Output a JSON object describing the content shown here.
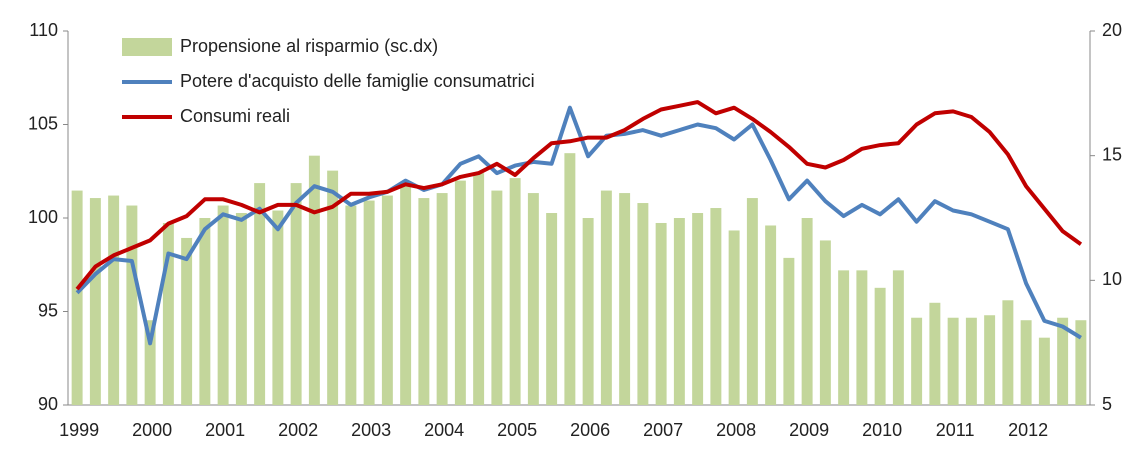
{
  "chart_data": {
    "type": "bar_line",
    "categories": [
      "1999",
      null,
      null,
      null,
      "2000",
      null,
      null,
      null,
      "2001",
      null,
      null,
      null,
      "2002",
      null,
      null,
      null,
      "2003",
      null,
      null,
      null,
      "2004",
      null,
      null,
      null,
      "2005",
      null,
      null,
      null,
      "2006",
      null,
      null,
      null,
      "2007",
      null,
      null,
      null,
      "2008",
      null,
      null,
      null,
      "2009",
      null,
      null,
      null,
      "2010",
      null,
      null,
      null,
      "2011",
      null,
      null,
      null,
      "2012",
      null,
      null,
      null
    ],
    "series": [
      {
        "name": "Propensione al risparmio (sc.dx)",
        "type": "bar",
        "axis": "y2",
        "color": "#c3d69b",
        "values": [
          13.6,
          13.3,
          13.4,
          13.0,
          8.4,
          12.3,
          11.7,
          12.5,
          13.0,
          12.7,
          13.9,
          12.8,
          13.9,
          15.0,
          14.4,
          13.0,
          13.2,
          13.4,
          13.8,
          13.3,
          13.5,
          14.0,
          14.3,
          13.6,
          14.1,
          13.5,
          12.7,
          15.1,
          12.5,
          13.6,
          13.5,
          13.1,
          12.3,
          12.5,
          12.7,
          12.9,
          12.0,
          13.3,
          12.2,
          10.9,
          12.5,
          11.6,
          10.4,
          10.4,
          9.7,
          10.4,
          8.5,
          9.1,
          8.5,
          8.5,
          8.6,
          9.2,
          8.4,
          7.7,
          8.5,
          8.4
        ]
      },
      {
        "name": "Potere d'acquisto delle famiglie consumatrici",
        "type": "line",
        "color": "#4f81bd",
        "values": [
          96.0,
          97.0,
          97.8,
          97.7,
          93.3,
          98.1,
          97.8,
          99.4,
          100.2,
          99.9,
          100.5,
          99.4,
          100.8,
          101.7,
          101.4,
          100.7,
          101.1,
          101.4,
          102.0,
          101.5,
          101.8,
          102.9,
          103.3,
          102.4,
          102.8,
          103.0,
          102.9,
          105.9,
          103.3,
          104.4,
          104.5,
          104.7,
          104.4,
          104.7,
          105.0,
          104.8,
          104.2,
          105.0,
          103.1,
          101.0,
          102.0,
          100.9,
          100.1,
          100.7,
          100.2,
          101.0,
          99.8,
          100.9,
          100.4,
          100.2,
          99.8,
          99.4,
          96.5,
          94.5,
          94.2,
          93.6
        ]
      },
      {
        "name": "Consumi reali",
        "type": "line",
        "color": "#c00000",
        "values": [
          96.2,
          97.4,
          98.0,
          98.4,
          98.8,
          99.7,
          100.1,
          101.0,
          101.0,
          100.7,
          100.3,
          100.7,
          100.7,
          100.3,
          100.6,
          101.3,
          101.3,
          101.4,
          101.8,
          101.6,
          101.8,
          102.2,
          102.4,
          102.9,
          102.3,
          103.2,
          104.0,
          104.1,
          104.3,
          104.3,
          104.7,
          105.3,
          105.8,
          106.0,
          106.2,
          105.6,
          105.9,
          105.3,
          104.6,
          103.8,
          102.9,
          102.7,
          103.1,
          103.7,
          103.9,
          104.0,
          105.0,
          105.6,
          105.7,
          105.4,
          104.6,
          103.4,
          101.7,
          100.5,
          99.3,
          98.6
        ]
      }
    ],
    "ylim": [
      90,
      110
    ],
    "yticks": [
      90,
      95,
      100,
      105,
      110
    ],
    "y2lim": [
      5,
      20
    ],
    "y2ticks": [
      5,
      10,
      15,
      20
    ],
    "legend": "top-left",
    "grid": false
  }
}
